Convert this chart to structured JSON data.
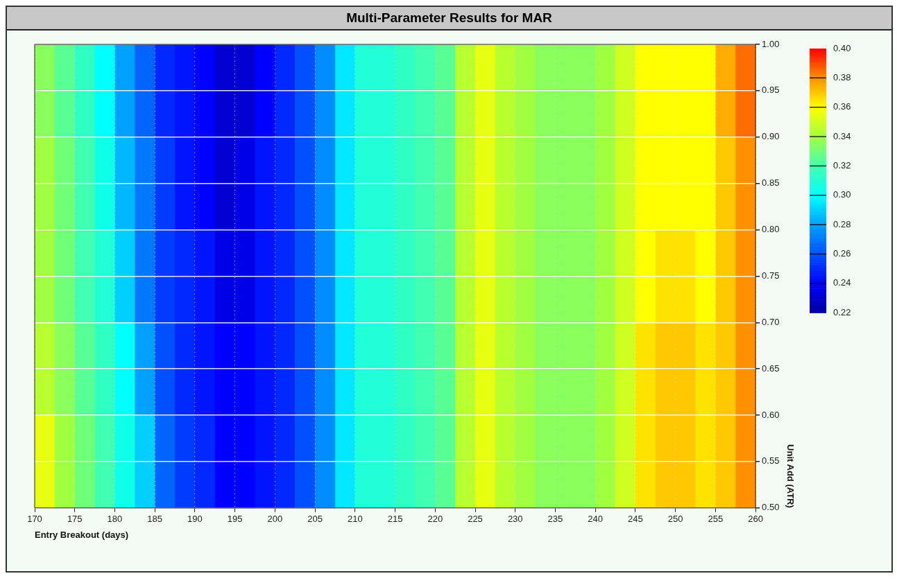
{
  "chart_data": {
    "type": "heatmap",
    "title": "Multi-Parameter Results for MAR",
    "xlabel": "Entry Breakout (days)",
    "ylabel": "Unit Add (ATR)",
    "xlim": [
      170,
      260
    ],
    "xticks": [
      170,
      175,
      180,
      185,
      190,
      195,
      200,
      205,
      210,
      215,
      220,
      225,
      230,
      235,
      240,
      245,
      250,
      255,
      260
    ],
    "ylim": [
      0.5,
      1.0
    ],
    "yticks": [
      {
        "value": 0.5,
        "label": "0.50"
      },
      {
        "value": 0.55,
        "label": "0.55"
      },
      {
        "value": 0.6,
        "label": "0.60"
      },
      {
        "value": 0.65,
        "label": "0.65"
      },
      {
        "value": 0.7,
        "label": "0.70"
      },
      {
        "value": 0.75,
        "label": "0.75"
      },
      {
        "value": 0.8,
        "label": "0.80"
      },
      {
        "value": 0.85,
        "label": "0.85"
      },
      {
        "value": 0.9,
        "label": "0.90"
      },
      {
        "value": 0.95,
        "label": "0.95"
      },
      {
        "value": 1.0,
        "label": "1.00"
      }
    ],
    "clim": [
      0.22,
      0.4
    ],
    "cticks": [
      0.22,
      0.24,
      0.26,
      0.28,
      {
        "value": 0.3,
        "label": "0.30"
      },
      0.32,
      0.34,
      0.36,
      0.38,
      {
        "value": 0.4,
        "label": "0.40"
      }
    ],
    "grid": true,
    "cells": [
      [
        0.335,
        0.325,
        0.315,
        0.3,
        0.28,
        0.265,
        0.25,
        0.245,
        0.24,
        0.23,
        0.23,
        0.24,
        0.25,
        0.26,
        0.275,
        0.295,
        0.31,
        0.31,
        0.315,
        0.32,
        0.325,
        0.345,
        0.355,
        0.345,
        0.34,
        0.335,
        0.335,
        0.335,
        0.34,
        0.35,
        0.36,
        0.36,
        0.36,
        0.36,
        0.375,
        0.385
      ],
      [
        0.34,
        0.33,
        0.32,
        0.305,
        0.285,
        0.27,
        0.255,
        0.245,
        0.24,
        0.23,
        0.235,
        0.245,
        0.25,
        0.26,
        0.275,
        0.295,
        0.31,
        0.31,
        0.315,
        0.32,
        0.325,
        0.345,
        0.355,
        0.345,
        0.34,
        0.335,
        0.335,
        0.335,
        0.34,
        0.35,
        0.36,
        0.36,
        0.36,
        0.36,
        0.37,
        0.38
      ],
      [
        0.34,
        0.33,
        0.32,
        0.31,
        0.29,
        0.27,
        0.255,
        0.25,
        0.245,
        0.235,
        0.235,
        0.245,
        0.25,
        0.26,
        0.275,
        0.295,
        0.31,
        0.31,
        0.315,
        0.32,
        0.325,
        0.345,
        0.355,
        0.345,
        0.34,
        0.335,
        0.335,
        0.335,
        0.34,
        0.35,
        0.36,
        0.365,
        0.365,
        0.36,
        0.37,
        0.38
      ],
      [
        0.345,
        0.335,
        0.325,
        0.315,
        0.3,
        0.28,
        0.26,
        0.25,
        0.245,
        0.24,
        0.24,
        0.245,
        0.25,
        0.26,
        0.275,
        0.295,
        0.31,
        0.31,
        0.315,
        0.32,
        0.325,
        0.345,
        0.355,
        0.345,
        0.34,
        0.335,
        0.335,
        0.335,
        0.34,
        0.35,
        0.365,
        0.37,
        0.37,
        0.365,
        0.37,
        0.38
      ],
      [
        0.355,
        0.34,
        0.33,
        0.32,
        0.305,
        0.29,
        0.265,
        0.255,
        0.25,
        0.24,
        0.24,
        0.245,
        0.25,
        0.26,
        0.275,
        0.295,
        0.31,
        0.31,
        0.315,
        0.32,
        0.325,
        0.345,
        0.355,
        0.345,
        0.34,
        0.335,
        0.335,
        0.335,
        0.34,
        0.35,
        0.365,
        0.37,
        0.37,
        0.365,
        0.37,
        0.38
      ]
    ]
  }
}
